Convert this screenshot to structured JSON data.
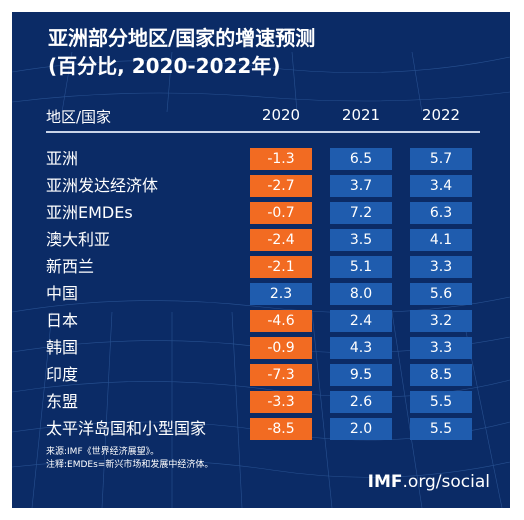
{
  "title_line1": "亚洲部分地区/国家的增速预测",
  "title_line2": "(百分比, 2020-2022年)",
  "colors": {
    "background": "#0b2b66",
    "negative": "#f26b22",
    "positive": "#1f5cae",
    "text": "#ffffff"
  },
  "chart_data": {
    "type": "table",
    "row_header": "地区/国家",
    "columns": [
      "2020",
      "2021",
      "2022"
    ],
    "rows": [
      {
        "label": "亚洲",
        "values": [
          "-1.3",
          "6.5",
          "5.7"
        ]
      },
      {
        "label": "亚洲发达经济体",
        "values": [
          "-2.7",
          "3.7",
          "3.4"
        ]
      },
      {
        "label": "亚洲EMDEs",
        "values": [
          "-0.7",
          "7.2",
          "6.3"
        ]
      },
      {
        "label": "澳大利亚",
        "values": [
          "-2.4",
          "3.5",
          "4.1"
        ]
      },
      {
        "label": "新西兰",
        "values": [
          "-2.1",
          "5.1",
          "3.3"
        ]
      },
      {
        "label": "中国",
        "values": [
          "2.3",
          "8.0",
          "5.6"
        ]
      },
      {
        "label": "日本",
        "values": [
          "-4.6",
          "2.4",
          "3.2"
        ]
      },
      {
        "label": "韩国",
        "values": [
          "-0.9",
          "4.3",
          "3.3"
        ]
      },
      {
        "label": "印度",
        "values": [
          "-7.3",
          "9.5",
          "8.5"
        ]
      },
      {
        "label": "东盟",
        "values": [
          "-3.3",
          "2.6",
          "5.5"
        ]
      },
      {
        "label": "太平洋岛国和小型国家",
        "values": [
          "-8.5",
          "2.0",
          "5.5"
        ]
      }
    ]
  },
  "footnotes": {
    "source": "来源:IMF《世界经济展望》。",
    "note": "注释:EMDEs=新兴市场和发展中经济体。"
  },
  "brand": {
    "bold": "IMF",
    "rest": ".org/social"
  }
}
